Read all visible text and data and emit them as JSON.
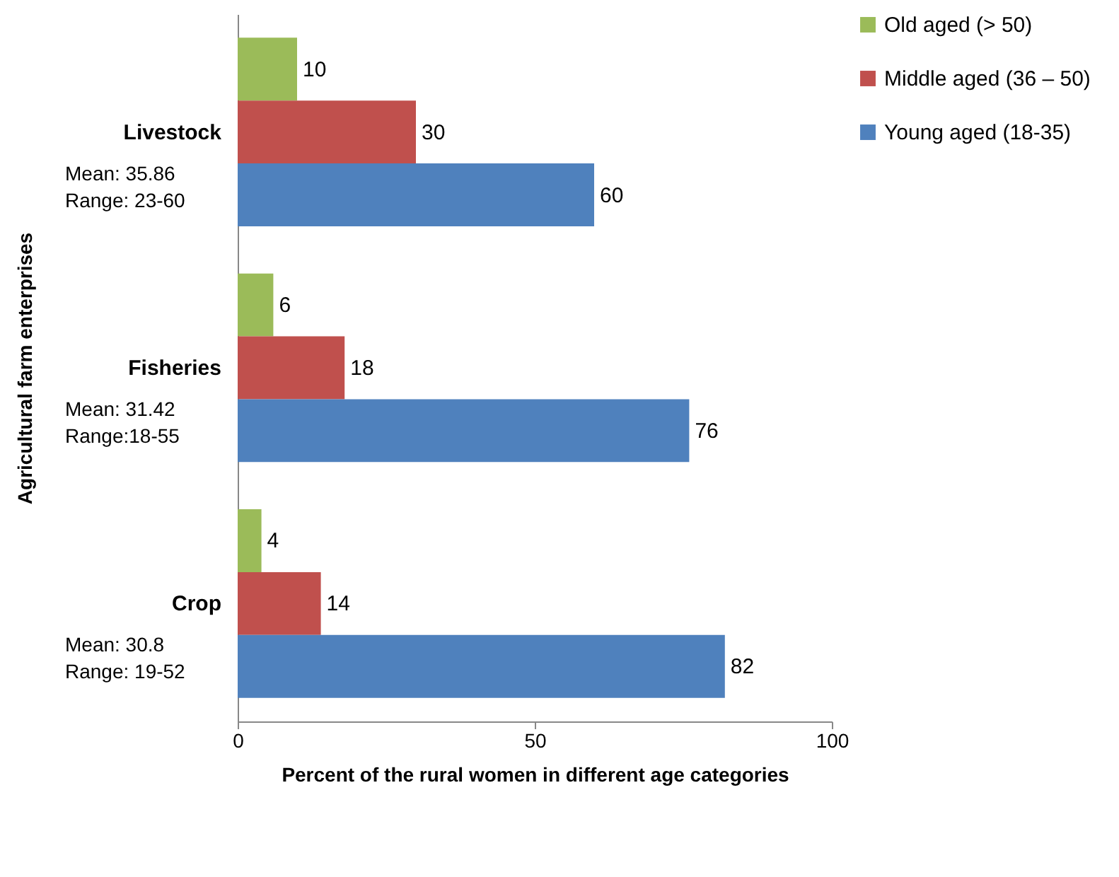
{
  "chart_data": {
    "type": "bar",
    "orientation": "horizontal",
    "categories": [
      "Livestock",
      "Fisheries",
      "Crop"
    ],
    "series": [
      {
        "name": "Old aged (> 50)",
        "color": "#9bbb59",
        "values": [
          10,
          6,
          4
        ]
      },
      {
        "name": "Middle aged (36 – 50)",
        "color": "#c0504d",
        "values": [
          30,
          18,
          14
        ]
      },
      {
        "name": "Young aged (18-35)",
        "color": "#4f81bd",
        "values": [
          60,
          76,
          82
        ]
      }
    ],
    "xlabel": "Percent of the rural women in different age categories",
    "ylabel": "Agricultural farm enterprises",
    "xlim": [
      0,
      100
    ],
    "xticks": [
      0,
      50,
      100
    ],
    "data_labels": true,
    "legend": "top right",
    "grid": false,
    "annotations": [
      "Mean: 35.86",
      "Range: 23-60",
      "Mean: 31.42",
      "Range:18-55",
      "Mean: 30.8",
      "Range: 19-52"
    ]
  }
}
